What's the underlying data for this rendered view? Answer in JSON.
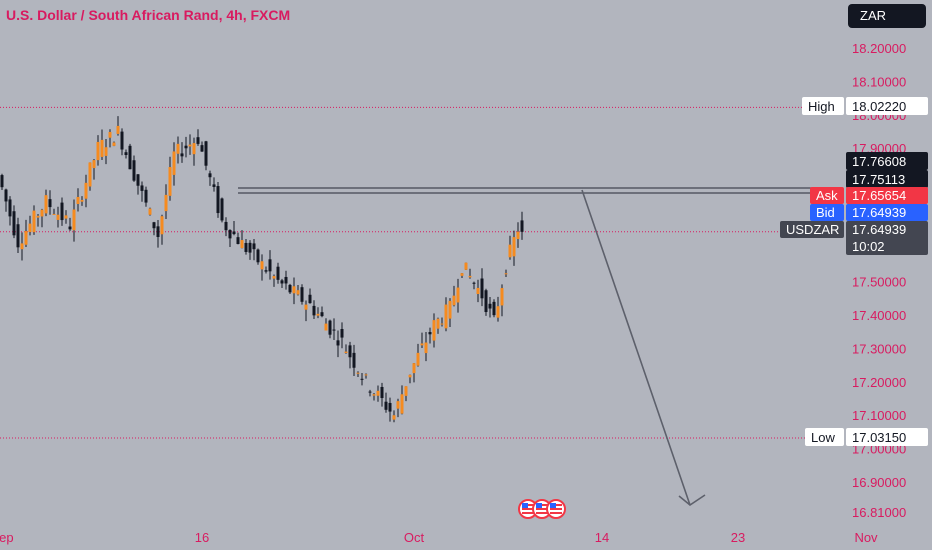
{
  "header": {
    "title": "U.S. Dollar / South African Rand, 4h, FXCM",
    "currency": "ZAR"
  },
  "chart_data": {
    "type": "candlestick",
    "symbol": "USDZAR",
    "y_ticks": [
      "18.20000",
      "18.10000",
      "18.00000",
      "17.90000",
      "17.50000",
      "17.40000",
      "17.30000",
      "17.20000",
      "17.10000",
      "17.00000",
      "16.90000",
      "16.81000"
    ],
    "y_tick_values": [
      18.2,
      18.1,
      18.0,
      17.9,
      17.5,
      17.4,
      17.3,
      17.2,
      17.1,
      17.0,
      16.9,
      16.81
    ],
    "x_ticks": [
      "Sep",
      "16",
      "Oct",
      "14",
      "23",
      "Nov"
    ],
    "x_tick_index": [
      0,
      50,
      103,
      150,
      184,
      216
    ],
    "ylim": [
      16.79,
      18.25
    ],
    "price_tags": {
      "high_label": "High",
      "high_value": "18.02220",
      "level1_value": "17.76608",
      "level2_value": "17.75113",
      "ask_label": "Ask",
      "ask_value": "17.65654",
      "bid_label": "Bid",
      "bid_value": "17.64939",
      "last_label": "USDZAR",
      "last_value": "17.64939",
      "countdown": "10:02",
      "low_label": "Low",
      "low_value": "17.03150"
    },
    "tag_values": {
      "high": 18.0222,
      "level1": 17.76608,
      "level2": 17.75113,
      "ask": 17.65654,
      "bid": 17.64939,
      "last": 17.64939,
      "low": 17.0315
    },
    "key_points": [
      {
        "i": 0,
        "p": 17.82
      },
      {
        "i": 5,
        "p": 17.62
      },
      {
        "i": 12,
        "p": 17.74
      },
      {
        "i": 18,
        "p": 17.67
      },
      {
        "i": 25,
        "p": 17.9
      },
      {
        "i": 30,
        "p": 17.95
      },
      {
        "i": 36,
        "p": 17.76
      },
      {
        "i": 40,
        "p": 17.64
      },
      {
        "i": 44,
        "p": 17.88
      },
      {
        "i": 50,
        "p": 17.93
      },
      {
        "i": 56,
        "p": 17.68
      },
      {
        "i": 62,
        "p": 17.6
      },
      {
        "i": 70,
        "p": 17.5
      },
      {
        "i": 78,
        "p": 17.43
      },
      {
        "i": 86,
        "p": 17.32
      },
      {
        "i": 92,
        "p": 17.2
      },
      {
        "i": 99,
        "p": 17.1
      },
      {
        "i": 103,
        "p": 17.23
      },
      {
        "i": 109,
        "p": 17.37
      },
      {
        "i": 113,
        "p": 17.42
      },
      {
        "i": 116,
        "p": 17.55
      },
      {
        "i": 121,
        "p": 17.46
      },
      {
        "i": 124,
        "p": 17.38
      },
      {
        "i": 127,
        "p": 17.55
      },
      {
        "i": 130,
        "p": 17.66
      }
    ],
    "projection": {
      "from_index": 145,
      "from_price": 17.76,
      "to_index": 178,
      "to_price": 16.84
    },
    "colors": {
      "up": "#f68b1f",
      "down": "#131722",
      "text": "#d81b60",
      "ask": "#f23645",
      "bid": "#2962ff"
    }
  }
}
